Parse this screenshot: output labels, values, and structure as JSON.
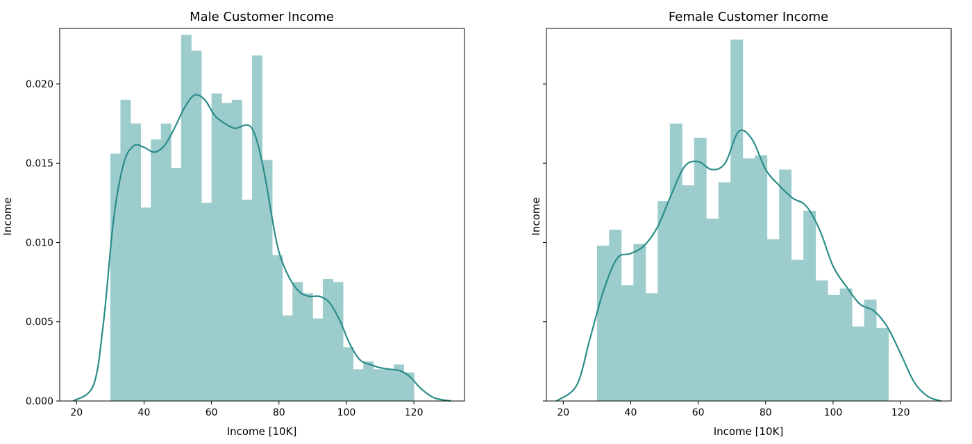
{
  "chart_data": [
    {
      "type": "histogram",
      "title": "Male Customer Income",
      "xlabel": "Income [10K]",
      "ylabel": "Income",
      "xlim": [
        15,
        135
      ],
      "ylim": [
        0,
        0.0235
      ],
      "xticks": [
        20,
        40,
        60,
        80,
        100,
        120
      ],
      "yticks": [
        0.0,
        0.005,
        0.01,
        0.015,
        0.02
      ],
      "ytick_labels": [
        "0.000",
        "0.005",
        "0.010",
        "0.015",
        "0.020"
      ],
      "bin_start": 30,
      "bin_width": 3,
      "values": [
        0.0156,
        0.019,
        0.0175,
        0.0122,
        0.0165,
        0.0175,
        0.0147,
        0.0231,
        0.0221,
        0.0125,
        0.0194,
        0.0188,
        0.019,
        0.0127,
        0.0218,
        0.0152,
        0.0092,
        0.0054,
        0.0075,
        0.0068,
        0.0052,
        0.0077,
        0.0075,
        0.0034,
        0.002,
        0.0025,
        0.002,
        0.002,
        0.0023,
        0.0018
      ],
      "kde": {
        "x": [
          19,
          25,
          28,
          31,
          34,
          37,
          40,
          43,
          46,
          49,
          52,
          55,
          58,
          61,
          64,
          67,
          70,
          72,
          74,
          76,
          78,
          80,
          83,
          86,
          89,
          92,
          95,
          98,
          101,
          104,
          107,
          110,
          113,
          116,
          119,
          122,
          126,
          131
        ],
        "y": [
          0.0,
          0.001,
          0.005,
          0.0115,
          0.015,
          0.0161,
          0.016,
          0.0157,
          0.0161,
          0.0172,
          0.0185,
          0.0193,
          0.019,
          0.018,
          0.0175,
          0.0172,
          0.0174,
          0.0172,
          0.016,
          0.014,
          0.0115,
          0.0094,
          0.0078,
          0.0069,
          0.0066,
          0.0066,
          0.0062,
          0.0051,
          0.0036,
          0.0026,
          0.0023,
          0.0021,
          0.002,
          0.0019,
          0.0015,
          0.0008,
          0.0002,
          0.0
        ]
      },
      "color": "#9dcccd",
      "line_color": "#2a8c88"
    },
    {
      "type": "histogram",
      "title": "Female Customer Income",
      "xlabel": "Income [10K]",
      "ylabel": "Income",
      "xlim": [
        15,
        135
      ],
      "ylim": [
        0,
        0.0235
      ],
      "xticks": [
        20,
        40,
        60,
        80,
        100,
        120
      ],
      "yticks": [
        0.0,
        0.005,
        0.01,
        0.015,
        0.02
      ],
      "ytick_labels": [
        "",
        "",
        "",
        "",
        ""
      ],
      "bin_start": 30,
      "bin_width": 3.6,
      "values": [
        0.0098,
        0.0108,
        0.0073,
        0.0099,
        0.0068,
        0.0126,
        0.0175,
        0.0136,
        0.0166,
        0.0115,
        0.0138,
        0.0228,
        0.0153,
        0.0155,
        0.0102,
        0.0146,
        0.0089,
        0.012,
        0.0076,
        0.0067,
        0.0071,
        0.0047,
        0.0064,
        0.0046
      ],
      "kde": {
        "x": [
          18,
          24,
          28,
          32,
          36,
          40,
          44,
          48,
          52,
          56,
          60,
          64,
          68,
          72,
          76,
          80,
          84,
          88,
          92,
          96,
          100,
          104,
          108,
          112,
          116,
          120,
          124,
          128,
          132
        ],
        "y": [
          0.0,
          0.001,
          0.004,
          0.007,
          0.009,
          0.0093,
          0.0098,
          0.011,
          0.013,
          0.0148,
          0.0151,
          0.0146,
          0.015,
          0.017,
          0.0165,
          0.0146,
          0.0136,
          0.0128,
          0.0123,
          0.0108,
          0.0085,
          0.0072,
          0.0061,
          0.0057,
          0.0047,
          0.003,
          0.0012,
          0.0003,
          0.0
        ]
      },
      "color": "#9dcccd",
      "line_color": "#2a8c88"
    }
  ]
}
